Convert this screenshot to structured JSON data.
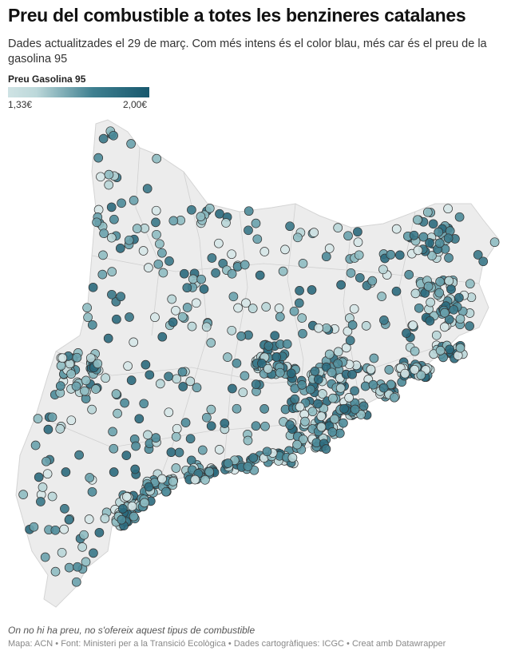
{
  "title": "Preu del combustible a totes les benzineres catalanes",
  "subtitle": "Dades actualitzades el 29 de març. Com més intens és el color blau, més car és el preu de la gasolina 95",
  "legend": {
    "title": "Preu Gasolina 95",
    "min": "1,33€",
    "max": "2,00€",
    "color_low": "#cfe3e4",
    "color_high": "#18586e"
  },
  "map": {
    "region": "Catalunya",
    "fill": "#ececec",
    "border": "#c8c8c8",
    "marker": "circle"
  },
  "note": "On no hi ha preu, no s'ofereix aquest tipus de combustible",
  "source": "Mapa: ACN • Font: Ministeri per a la Transició Ecològica • Dades cartogràfiques: ICGC  • Creat amb Datawrapper"
}
